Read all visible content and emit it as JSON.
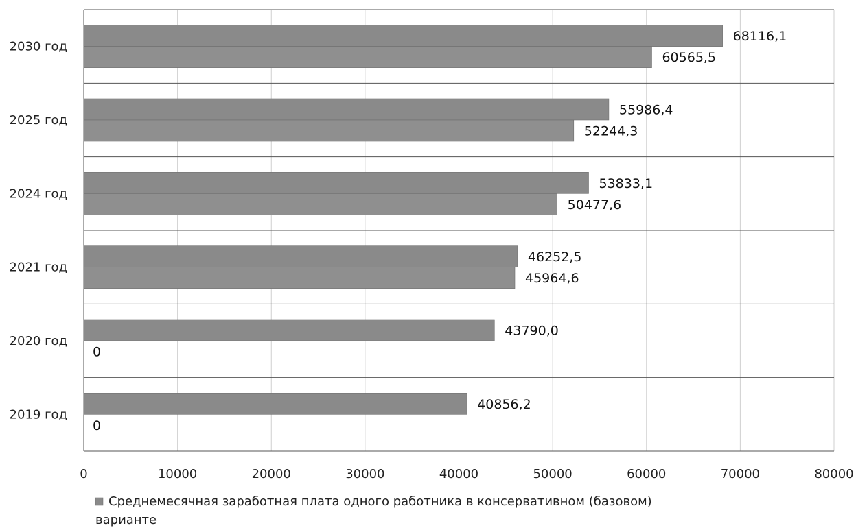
{
  "chart_data": {
    "type": "bar",
    "orientation": "horizontal",
    "categories": [
      "2030 год",
      "2025 год",
      "2024 год",
      "2021 год",
      "2020 год",
      "2019 год"
    ],
    "series": [
      {
        "name": "Среднемесячная заработная плата одного работника в консервативном (базовом) варианте",
        "values": [
          68116.1,
          55986.4,
          53833.1,
          46252.5,
          43790.0,
          40856.2
        ],
        "labels": [
          "68116,1",
          "55986,4",
          "53833,1",
          "46252,5",
          "43790,0",
          "40856,2"
        ]
      },
      {
        "name": "",
        "values": [
          60565.5,
          52244.3,
          50477.6,
          45964.6,
          0,
          0
        ],
        "labels": [
          "60565,5",
          "52244,3",
          "50477,6",
          "45964,6",
          "0",
          "0"
        ]
      }
    ],
    "xlim": [
      0,
      80000
    ],
    "xticks": [
      "0",
      "10000",
      "20000",
      "30000",
      "40000",
      "50000",
      "60000",
      "70000",
      "80000"
    ],
    "grid": true,
    "legend_position": "bottom",
    "bar_color": "#8a8a8a",
    "title": "",
    "xlabel": "",
    "ylabel": ""
  }
}
